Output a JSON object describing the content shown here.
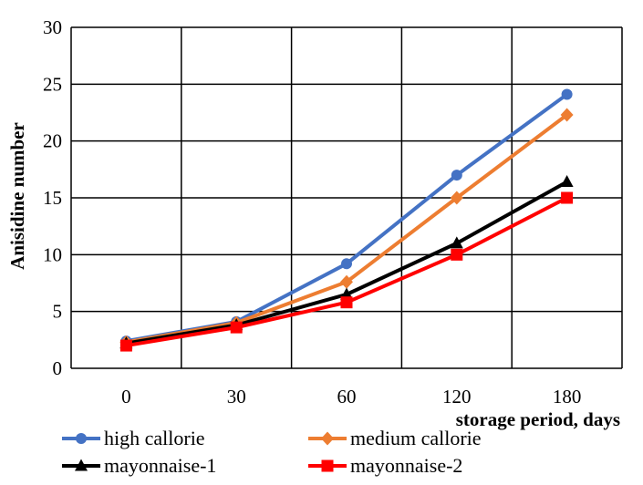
{
  "chart_data": {
    "type": "line",
    "xlabel": "storage period, days",
    "ylabel": "Anisidine number",
    "categories": [
      "0",
      "30",
      "60",
      "120",
      "180"
    ],
    "ylim": [
      0,
      30
    ],
    "y_ticks": [
      0,
      5,
      10,
      15,
      20,
      25,
      30
    ],
    "grid": true,
    "legend_position": "bottom",
    "series": [
      {
        "name": "high callorie",
        "values": [
          2.4,
          4.1,
          9.2,
          17.0,
          24.1
        ],
        "color": "#4472C4",
        "marker": "circle"
      },
      {
        "name": "medium callorie",
        "values": [
          2.3,
          4.0,
          7.6,
          15.0,
          22.3
        ],
        "color": "#ED7D31",
        "marker": "diamond"
      },
      {
        "name": "mayonnaise-1",
        "values": [
          2.2,
          3.8,
          6.5,
          11.0,
          16.4
        ],
        "color": "#000000",
        "marker": "triangle"
      },
      {
        "name": "mayonnaise-2",
        "values": [
          2.0,
          3.6,
          5.8,
          10.0,
          15.0
        ],
        "color": "#FF0000",
        "marker": "square"
      }
    ]
  }
}
